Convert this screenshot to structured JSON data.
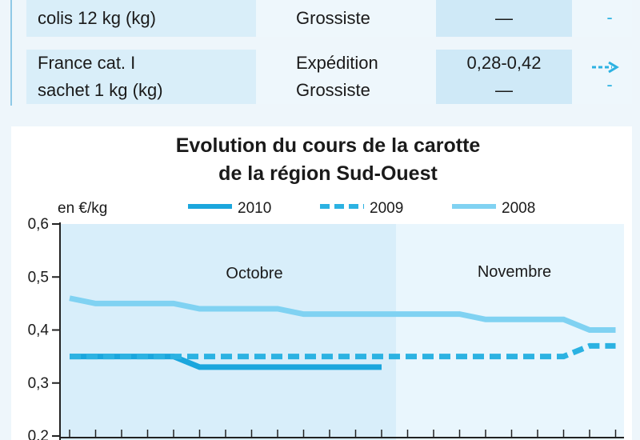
{
  "table": {
    "rows": [
      [
        [
          "colis 12 kg (kg)"
        ],
        [
          "Grossiste"
        ],
        [
          "—"
        ],
        [
          "-"
        ]
      ],
      [
        [
          "France cat. I",
          "sachet 1 kg (kg)"
        ],
        [
          "Expédition",
          "Grossiste"
        ],
        [
          "0,28-0,42",
          "—"
        ],
        [
          "-"
        ]
      ]
    ]
  },
  "chart_data": {
    "type": "line",
    "title": [
      "Evolution du cours de la carotte",
      "de la région Sud-Ouest"
    ],
    "y_label": "en €/kg",
    "annotations": [
      "Octobre",
      "Novembre"
    ],
    "categories": [
      null,
      null,
      null,
      null,
      null,
      null,
      null,
      null,
      null,
      null,
      null,
      null,
      null,
      null,
      null,
      null,
      null,
      null,
      null,
      null,
      null,
      null
    ],
    "series": [
      {
        "name": "2010",
        "color": "#1ba6dd",
        "dash": false,
        "values": [
          0.35,
          0.35,
          0.35,
          0.35,
          0.35,
          0.33,
          0.33,
          0.33,
          0.33,
          0.33,
          0.33,
          0.33,
          0.33,
          null,
          null,
          null,
          null,
          null,
          null,
          null,
          null,
          null
        ]
      },
      {
        "name": "2009",
        "color": "#2cb2e2",
        "dash": true,
        "values": [
          0.35,
          0.35,
          0.35,
          0.35,
          0.35,
          0.35,
          0.35,
          0.35,
          0.35,
          0.35,
          0.35,
          0.35,
          0.35,
          0.35,
          0.35,
          0.35,
          0.35,
          0.35,
          0.35,
          0.35,
          0.37,
          0.37
        ]
      },
      {
        "name": "2008",
        "color": "#80d2f2",
        "dash": false,
        "values": [
          0.46,
          0.45,
          0.45,
          0.45,
          0.45,
          0.44,
          0.44,
          0.44,
          0.44,
          0.43,
          0.43,
          0.43,
          0.43,
          0.43,
          0.43,
          0.43,
          0.42,
          0.42,
          0.42,
          0.42,
          0.4,
          0.4
        ]
      }
    ],
    "ylim": [
      0.2,
      0.6
    ],
    "yticks": [
      {
        "value": 0.2,
        "label": "0,2"
      },
      {
        "value": 0.3,
        "label": "0,3"
      },
      {
        "value": 0.4,
        "label": "0,4"
      },
      {
        "value": 0.5,
        "label": "0,5"
      },
      {
        "value": 0.6,
        "label": "0,6"
      }
    ],
    "grid": false
  }
}
